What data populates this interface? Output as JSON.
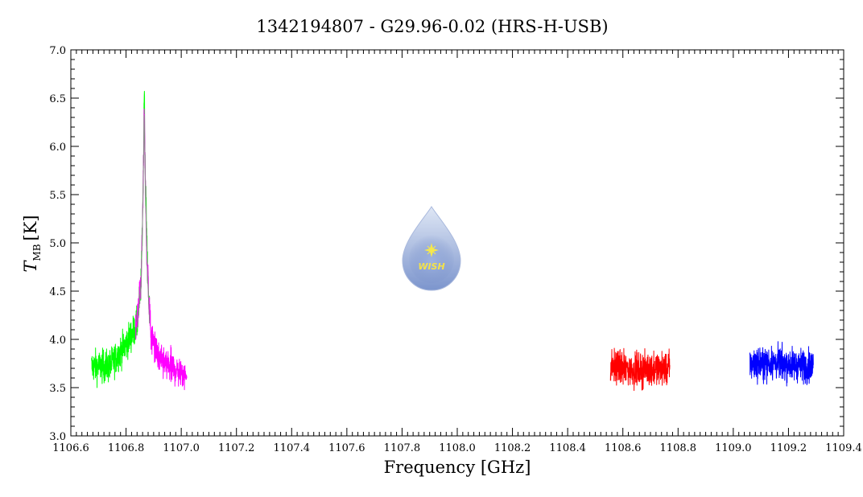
{
  "chart_data": {
    "type": "line",
    "title": "1342194807 - G29.96-0.02 (HRS-H-USB)",
    "xlabel": "Frequency [GHz]",
    "ylabel_main": "T",
    "ylabel_sub": "MB",
    "ylabel_unit": "[K]",
    "xlim": [
      1106.6,
      1109.4
    ],
    "ylim": [
      3.0,
      7.0
    ],
    "xticks": [
      "1106.6",
      "1106.8",
      "1107.0",
      "1107.2",
      "1107.4",
      "1107.6",
      "1107.8",
      "1108.0",
      "1108.2",
      "1108.4",
      "1108.6",
      "1108.8",
      "1109.0",
      "1109.2",
      "1109.4"
    ],
    "yticks": [
      "3.0",
      "3.5",
      "4.0",
      "4.5",
      "5.0",
      "5.5",
      "6.0",
      "6.5",
      "7.0"
    ],
    "grid": false,
    "series": [
      {
        "color": "#00ff00",
        "x_range": [
          1106.675,
          1106.885
        ],
        "baseline": [
          [
            1106.675,
            3.72
          ],
          [
            1106.74,
            3.72
          ],
          [
            1106.8,
            3.95
          ],
          [
            1106.84,
            4.15
          ],
          [
            1106.855,
            4.6
          ],
          [
            1106.862,
            5.6
          ],
          [
            1106.866,
            6.4
          ],
          [
            1106.87,
            5.7
          ],
          [
            1106.877,
            4.8
          ],
          [
            1106.885,
            4.3
          ]
        ],
        "noise": 0.1,
        "peak": 6.58
      },
      {
        "color": "#ff00ff",
        "x_range": [
          1106.835,
          1107.02
        ],
        "baseline": [
          [
            1106.835,
            4.1
          ],
          [
            1106.855,
            4.6
          ],
          [
            1106.862,
            5.6
          ],
          [
            1106.866,
            6.35
          ],
          [
            1106.87,
            5.6
          ],
          [
            1106.877,
            4.7
          ],
          [
            1106.89,
            4.05
          ],
          [
            1106.92,
            3.78
          ],
          [
            1106.97,
            3.7
          ],
          [
            1107.02,
            3.62
          ]
        ],
        "noise": 0.1,
        "peak": 6.4
      },
      {
        "color": "#ff0000",
        "x_range": [
          1108.555,
          1108.77
        ],
        "baseline": [
          [
            1108.555,
            3.72
          ],
          [
            1108.65,
            3.68
          ],
          [
            1108.77,
            3.7
          ]
        ],
        "noise": 0.1,
        "peak": null
      },
      {
        "color": "#0000ff",
        "x_range": [
          1109.06,
          1109.29
        ],
        "baseline": [
          [
            1109.06,
            3.75
          ],
          [
            1109.18,
            3.75
          ],
          [
            1109.29,
            3.72
          ]
        ],
        "noise": 0.1,
        "peak": null
      },
      {
        "color": "#888888",
        "x_range": [
          1106.84,
          1106.885
        ],
        "baseline": [
          [
            1106.84,
            4.15
          ],
          [
            1106.855,
            4.6
          ],
          [
            1106.862,
            5.6
          ],
          [
            1106.866,
            6.3
          ],
          [
            1106.87,
            5.6
          ],
          [
            1106.877,
            4.7
          ],
          [
            1106.885,
            4.2
          ]
        ],
        "noise": 0.04,
        "peak": null
      }
    ]
  },
  "logo": {
    "text": "WISH",
    "colors": {
      "drop_top": "#d9e3f3",
      "drop_bottom": "#7f98cf",
      "star": "#f6e84c"
    }
  }
}
